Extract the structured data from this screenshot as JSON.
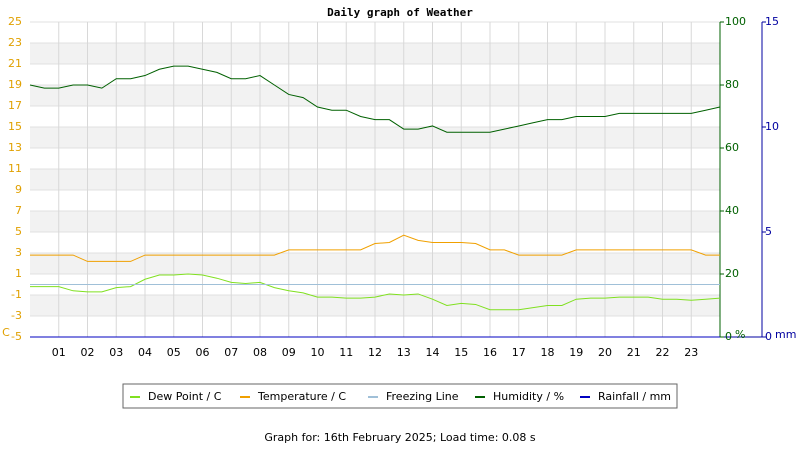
{
  "chart_data": {
    "type": "line",
    "title": "Daily graph of Weather",
    "footer": "Graph for: 16th February 2025; Load time: 0.08 s",
    "y_unit": "C",
    "y2_unit": "%",
    "y3_unit": "mm",
    "x": [
      0,
      0.5,
      1,
      1.5,
      2,
      2.5,
      3,
      3.5,
      4,
      4.5,
      5,
      5.5,
      6,
      6.5,
      7,
      7.5,
      8,
      8.5,
      9,
      9.5,
      10,
      10.5,
      11,
      11.5,
      12,
      12.5,
      13,
      13.5,
      14,
      14.5,
      15,
      15.5,
      16,
      16.5,
      17,
      17.5,
      18,
      18.5,
      19,
      19.5,
      20,
      20.5,
      21,
      21.5,
      22,
      22.5,
      23,
      23.5,
      24
    ],
    "xlim": [
      0,
      24
    ],
    "xticks": [
      {
        "value": 1,
        "label": "01"
      },
      {
        "value": 2,
        "label": "02"
      },
      {
        "value": 3,
        "label": "03"
      },
      {
        "value": 4,
        "label": "04"
      },
      {
        "value": 5,
        "label": "05"
      },
      {
        "value": 6,
        "label": "06"
      },
      {
        "value": 7,
        "label": "07"
      },
      {
        "value": 8,
        "label": "08"
      },
      {
        "value": 9,
        "label": "09"
      },
      10,
      11,
      12,
      13,
      14,
      15,
      16,
      17,
      18,
      19,
      20,
      21,
      22,
      23
    ],
    "ylim": [
      -5,
      25
    ],
    "yticks": [
      -5,
      -3,
      -1,
      1,
      3,
      5,
      7,
      9,
      11,
      13,
      15,
      17,
      19,
      21,
      23,
      25
    ],
    "y2lim": [
      0,
      100
    ],
    "y2ticks": [
      0,
      20,
      40,
      60,
      80,
      100
    ],
    "y3lim": [
      0,
      15
    ],
    "y3ticks": [
      0,
      5,
      10,
      15
    ],
    "grid": true,
    "series": [
      {
        "name": "Dew Point / C",
        "color": "#80e020",
        "axis": "y",
        "values": [
          -0.2,
          -0.2,
          -0.2,
          -0.6,
          -0.7,
          -0.7,
          -0.3,
          -0.2,
          0.5,
          0.9,
          0.9,
          1.0,
          0.9,
          0.6,
          0.2,
          0.1,
          0.2,
          -0.3,
          -0.6,
          -0.8,
          -1.2,
          -1.2,
          -1.3,
          -1.3,
          -1.2,
          -0.9,
          -1.0,
          -0.9,
          -1.4,
          -2.0,
          -1.8,
          -1.9,
          -2.4,
          -2.4,
          -2.4,
          -2.2,
          -2.0,
          -2.0,
          -1.4,
          -1.3,
          -1.3,
          -1.2,
          -1.2,
          -1.2,
          -1.4,
          -1.4,
          -1.5,
          -1.4,
          -1.3
        ]
      },
      {
        "name": "Temperature / C",
        "color": "#f0a000",
        "axis": "y",
        "values": [
          2.8,
          2.8,
          2.8,
          2.8,
          2.2,
          2.2,
          2.2,
          2.2,
          2.8,
          2.8,
          2.8,
          2.8,
          2.8,
          2.8,
          2.8,
          2.8,
          2.8,
          2.8,
          3.3,
          3.3,
          3.3,
          3.3,
          3.3,
          3.3,
          3.9,
          4.0,
          4.7,
          4.2,
          4.0,
          4.0,
          4.0,
          3.9,
          3.3,
          3.3,
          2.8,
          2.8,
          2.8,
          2.8,
          3.3,
          3.3,
          3.3,
          3.3,
          3.3,
          3.3,
          3.3,
          3.3,
          3.3,
          2.8,
          2.8
        ]
      },
      {
        "name": "Freezing Line",
        "color": "#a0c0d8",
        "axis": "y",
        "values": [
          0,
          0,
          0,
          0,
          0,
          0,
          0,
          0,
          0,
          0,
          0,
          0,
          0,
          0,
          0,
          0,
          0,
          0,
          0,
          0,
          0,
          0,
          0,
          0,
          0,
          0,
          0,
          0,
          0,
          0,
          0,
          0,
          0,
          0,
          0,
          0,
          0,
          0,
          0,
          0,
          0,
          0,
          0,
          0,
          0,
          0,
          0,
          0,
          0
        ]
      },
      {
        "name": "Humidity / %",
        "color": "#006000",
        "axis": "y2",
        "values": [
          80,
          79,
          79,
          80,
          80,
          79,
          82,
          82,
          83,
          85,
          86,
          86,
          85,
          84,
          82,
          82,
          83,
          80,
          77,
          76,
          73,
          72,
          72,
          70,
          69,
          69,
          66,
          66,
          67,
          65,
          65,
          65,
          65,
          66,
          67,
          68,
          69,
          69,
          70,
          70,
          70,
          71,
          71,
          71,
          71,
          71,
          71,
          72,
          73
        ]
      },
      {
        "name": "Rainfall / mm",
        "color": "#0000c0",
        "axis": "y3",
        "values": [
          0,
          0,
          0,
          0,
          0,
          0,
          0,
          0,
          0,
          0,
          0,
          0,
          0,
          0,
          0,
          0,
          0,
          0,
          0,
          0,
          0,
          0,
          0,
          0,
          0,
          0,
          0,
          0,
          0,
          0,
          0,
          0,
          0,
          0,
          0,
          0,
          0,
          0,
          0,
          0,
          0,
          0,
          0,
          0,
          0,
          0,
          0,
          0,
          0
        ]
      }
    ]
  }
}
